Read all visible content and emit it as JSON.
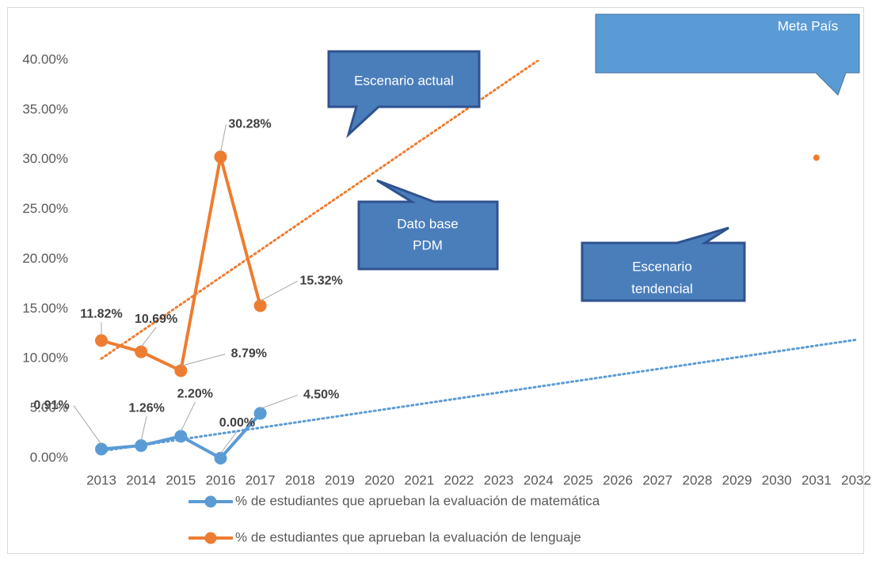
{
  "chart_data": {
    "type": "line",
    "categories": [
      "2013",
      "2014",
      "2015",
      "2016",
      "2017",
      "2018",
      "2019",
      "2020",
      "2021",
      "2022",
      "2023",
      "2024",
      "2025",
      "2026",
      "2027",
      "2028",
      "2029",
      "2030",
      "2031",
      "2032"
    ],
    "ylim": [
      0,
      40
    ],
    "yticks": [
      {
        "value": 0,
        "label": "0.00%"
      },
      {
        "value": 5,
        "label": "5.00%"
      },
      {
        "value": 10,
        "label": "10.00%"
      },
      {
        "value": 15,
        "label": "15.00%"
      },
      {
        "value": 20,
        "label": "20.00%"
      },
      {
        "value": 25,
        "label": "25.00%"
      },
      {
        "value": 30,
        "label": "30.00%"
      },
      {
        "value": 35,
        "label": "35.00%"
      },
      {
        "value": 40,
        "label": "40.00%"
      }
    ],
    "series": [
      {
        "name": "% de estudiantes que aprueban la evaluación de matemática",
        "color": "#5b9bd5",
        "values": [
          0.91,
          1.26,
          2.2,
          0.0,
          4.5,
          null,
          null,
          null,
          null,
          null,
          null,
          null,
          null,
          null,
          null,
          null,
          null,
          null,
          null,
          null
        ],
        "value_labels": [
          "0.91%",
          "1.26%",
          "2.20%",
          "0.00%",
          "4.50%",
          null,
          null,
          null,
          null,
          null,
          null,
          null,
          null,
          null,
          null,
          null,
          null,
          null,
          null,
          null
        ],
        "trendline": [
          0.7,
          11.9
        ]
      },
      {
        "name": "% de estudiantes que aprueban la evaluación de lenguaje",
        "color": "#ed7d31",
        "values": [
          11.82,
          10.69,
          8.79,
          30.28,
          15.32,
          null,
          null,
          null,
          null,
          null,
          null,
          null,
          null,
          null,
          null,
          null,
          null,
          null,
          30.2,
          null
        ],
        "value_labels": [
          "11.82%",
          "10.69%",
          "8.79%",
          "30.28%",
          "15.32%",
          null,
          null,
          null,
          null,
          null,
          null,
          null,
          null,
          null,
          null,
          null,
          null,
          null,
          null,
          null
        ],
        "trendline": [
          10.0,
          61.8
        ]
      }
    ],
    "annotations": [
      {
        "text": [
          "Escenario actual"
        ]
      },
      {
        "text": [
          "Dato base",
          "PDM"
        ]
      },
      {
        "text": [
          "Escenario",
          "tendencial"
        ]
      },
      {
        "text": [
          "Meta  País"
        ]
      }
    ]
  }
}
